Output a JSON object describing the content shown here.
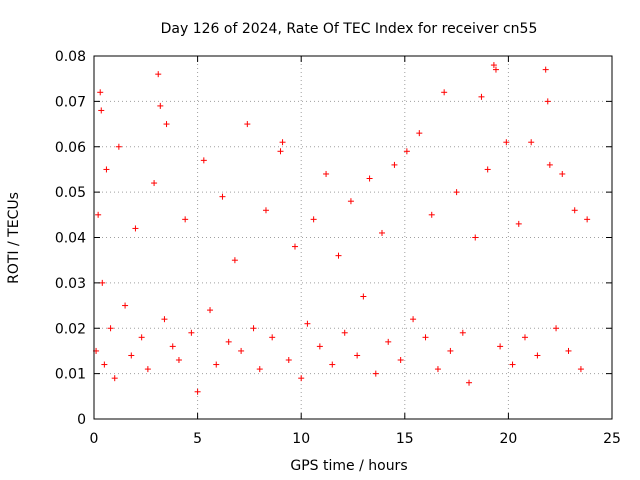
{
  "chart_data": {
    "type": "scatter",
    "title": "Day 126 of 2024, Rate Of TEC Index for receiver cn55",
    "xlabel": "GPS time / hours",
    "ylabel": "ROTI / TECUs",
    "xlim": [
      0,
      25
    ],
    "ylim": [
      0,
      0.08
    ],
    "xticks": [
      "0",
      "5",
      "10",
      "15",
      "20",
      "25"
    ],
    "yticks": [
      "0",
      "0.01",
      "0.02",
      "0.03",
      "0.04",
      "0.05",
      "0.06",
      "0.07",
      "0.08"
    ],
    "grid": true,
    "marker": "+",
    "color": "#ff0000",
    "series": [
      {
        "x": [
          0.1,
          0.2,
          0.3,
          0.35,
          0.4,
          0.5,
          0.6,
          0.8,
          1.0,
          1.2,
          1.5,
          1.8,
          2.0,
          2.3,
          2.6,
          2.9,
          3.1,
          3.2,
          3.4,
          3.5,
          3.8,
          4.1,
          4.4,
          4.7,
          5.0,
          5.3,
          5.6,
          5.9,
          6.2,
          6.5,
          6.8,
          7.1,
          7.4,
          7.7,
          8.0,
          8.3,
          8.6,
          9.0,
          9.1,
          9.4,
          9.7,
          10.0,
          10.3,
          10.6,
          10.9,
          11.2,
          11.5,
          11.8,
          12.1,
          12.4,
          12.7,
          13.0,
          13.3,
          13.6,
          13.9,
          14.2,
          14.5,
          14.8,
          15.1,
          15.4,
          15.7,
          16.0,
          16.3,
          16.6,
          16.9,
          17.2,
          17.5,
          17.8,
          18.1,
          18.4,
          18.7,
          19.0,
          19.3,
          19.4,
          19.6,
          19.9,
          20.2,
          20.5,
          20.8,
          21.1,
          21.4,
          21.8,
          21.9,
          22.0,
          22.3,
          22.6,
          22.9,
          23.2,
          23.5,
          23.8
        ],
        "y": [
          0.015,
          0.045,
          0.072,
          0.068,
          0.03,
          0.012,
          0.055,
          0.02,
          0.009,
          0.06,
          0.025,
          0.014,
          0.042,
          0.018,
          0.011,
          0.052,
          0.076,
          0.069,
          0.022,
          0.065,
          0.016,
          0.013,
          0.044,
          0.019,
          0.006,
          0.057,
          0.024,
          0.012,
          0.049,
          0.017,
          0.035,
          0.015,
          0.065,
          0.02,
          0.011,
          0.046,
          0.018,
          0.059,
          0.061,
          0.013,
          0.038,
          0.009,
          0.021,
          0.044,
          0.016,
          0.054,
          0.012,
          0.036,
          0.019,
          0.048,
          0.014,
          0.027,
          0.053,
          0.01,
          0.041,
          0.017,
          0.056,
          0.013,
          0.059,
          0.022,
          0.063,
          0.018,
          0.045,
          0.011,
          0.072,
          0.015,
          0.05,
          0.019,
          0.008,
          0.04,
          0.071,
          0.055,
          0.078,
          0.077,
          0.016,
          0.061,
          0.012,
          0.043,
          0.018,
          0.061,
          0.014,
          0.077,
          0.07,
          0.056,
          0.02,
          0.054,
          0.015,
          0.046,
          0.011,
          0.044
        ]
      }
    ]
  }
}
